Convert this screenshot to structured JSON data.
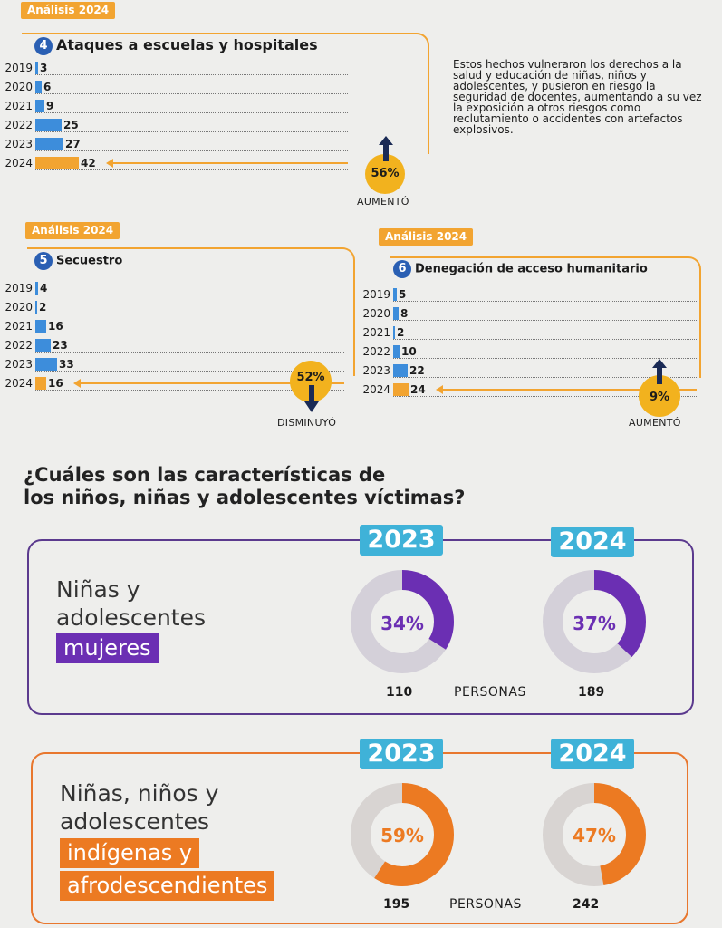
{
  "top_badge": "Análisis 2024",
  "section4": {
    "number": "4",
    "title": "Ataques a escuelas y hospitales",
    "rows": [
      {
        "year": "2019",
        "value": "3"
      },
      {
        "year": "2020",
        "value": "6"
      },
      {
        "year": "2021",
        "value": "9"
      },
      {
        "year": "2022",
        "value": "25"
      },
      {
        "year": "2023",
        "value": "27"
      },
      {
        "year": "2024",
        "value": "42"
      }
    ],
    "change": "56%",
    "trend": "AUMENTÓ",
    "description": "Estos hechos vulneraron los derechos a la salud y educación de niñas, niños y adolescentes, y pusieron en riesgo la seguridad de docentes, aumentando a su vez la exposición a otros riesgos como reclutamiento o accidentes con artefactos explosivos."
  },
  "section5": {
    "badge": "Análisis 2024",
    "number": "5",
    "title": "Secuestro",
    "rows": [
      {
        "year": "2019",
        "value": "4"
      },
      {
        "year": "2020",
        "value": "2"
      },
      {
        "year": "2021",
        "value": "16"
      },
      {
        "year": "2022",
        "value": "23"
      },
      {
        "year": "2023",
        "value": "33"
      },
      {
        "year": "2024",
        "value": "16"
      }
    ],
    "change": "52%",
    "trend": "DISMINUYÓ"
  },
  "section6": {
    "badge": "Análisis 2024",
    "number": "6",
    "title": "Denegación de acceso humanitario",
    "rows": [
      {
        "year": "2019",
        "value": "5"
      },
      {
        "year": "2020",
        "value": "8"
      },
      {
        "year": "2021",
        "value": "2"
      },
      {
        "year": "2022",
        "value": "10"
      },
      {
        "year": "2023",
        "value": "22"
      },
      {
        "year": "2024",
        "value": "24"
      }
    ],
    "change": "9%",
    "trend": "AUMENTÓ"
  },
  "question": {
    "line1": "¿Cuáles son las características de",
    "line2": "los niños, niñas y adolescentes víctimas?"
  },
  "panel_girls": {
    "line1": "Niñas y",
    "line2": "adolescentes",
    "highlight": "mujeres",
    "year1": "2023",
    "year2": "2024",
    "pct1": "34%",
    "pct2": "37%",
    "count1": "110",
    "count2": "189",
    "personas": "PERSONAS",
    "accent": "#6b2fb3"
  },
  "panel_ethnic": {
    "line1": "Niñas, niños y",
    "line2": "adolescentes",
    "highlight1": "indígenas y",
    "highlight2": "afrodescendientes",
    "year1": "2023",
    "year2": "2024",
    "pct1": "59%",
    "pct2": "47%",
    "count1": "195",
    "count2": "242",
    "personas": "PERSONAS",
    "accent": "#ec7a22"
  },
  "chart_data": [
    {
      "type": "bar",
      "title": "Ataques a escuelas y hospitales",
      "categories": [
        "2019",
        "2020",
        "2021",
        "2022",
        "2023",
        "2024"
      ],
      "values": [
        3,
        6,
        9,
        25,
        27,
        42
      ],
      "annotation": "56% AUMENTÓ"
    },
    {
      "type": "bar",
      "title": "Secuestro",
      "categories": [
        "2019",
        "2020",
        "2021",
        "2022",
        "2023",
        "2024"
      ],
      "values": [
        4,
        2,
        16,
        23,
        33,
        16
      ],
      "annotation": "52% DISMINUYÓ"
    },
    {
      "type": "bar",
      "title": "Denegación de acceso humanitario",
      "categories": [
        "2019",
        "2020",
        "2021",
        "2022",
        "2023",
        "2024"
      ],
      "values": [
        5,
        8,
        2,
        10,
        22,
        24
      ],
      "annotation": "9% AUMENTÓ"
    },
    {
      "type": "pie",
      "title": "Niñas y adolescentes mujeres",
      "series": [
        {
          "name": "2023",
          "values": [
            34
          ]
        },
        {
          "name": "2024",
          "values": [
            37
          ]
        }
      ]
    },
    {
      "type": "pie",
      "title": "Niñas, niños y adolescentes indígenas y afrodescendientes",
      "series": [
        {
          "name": "2023",
          "values": [
            59
          ]
        },
        {
          "name": "2024",
          "values": [
            47
          ]
        }
      ]
    }
  ]
}
